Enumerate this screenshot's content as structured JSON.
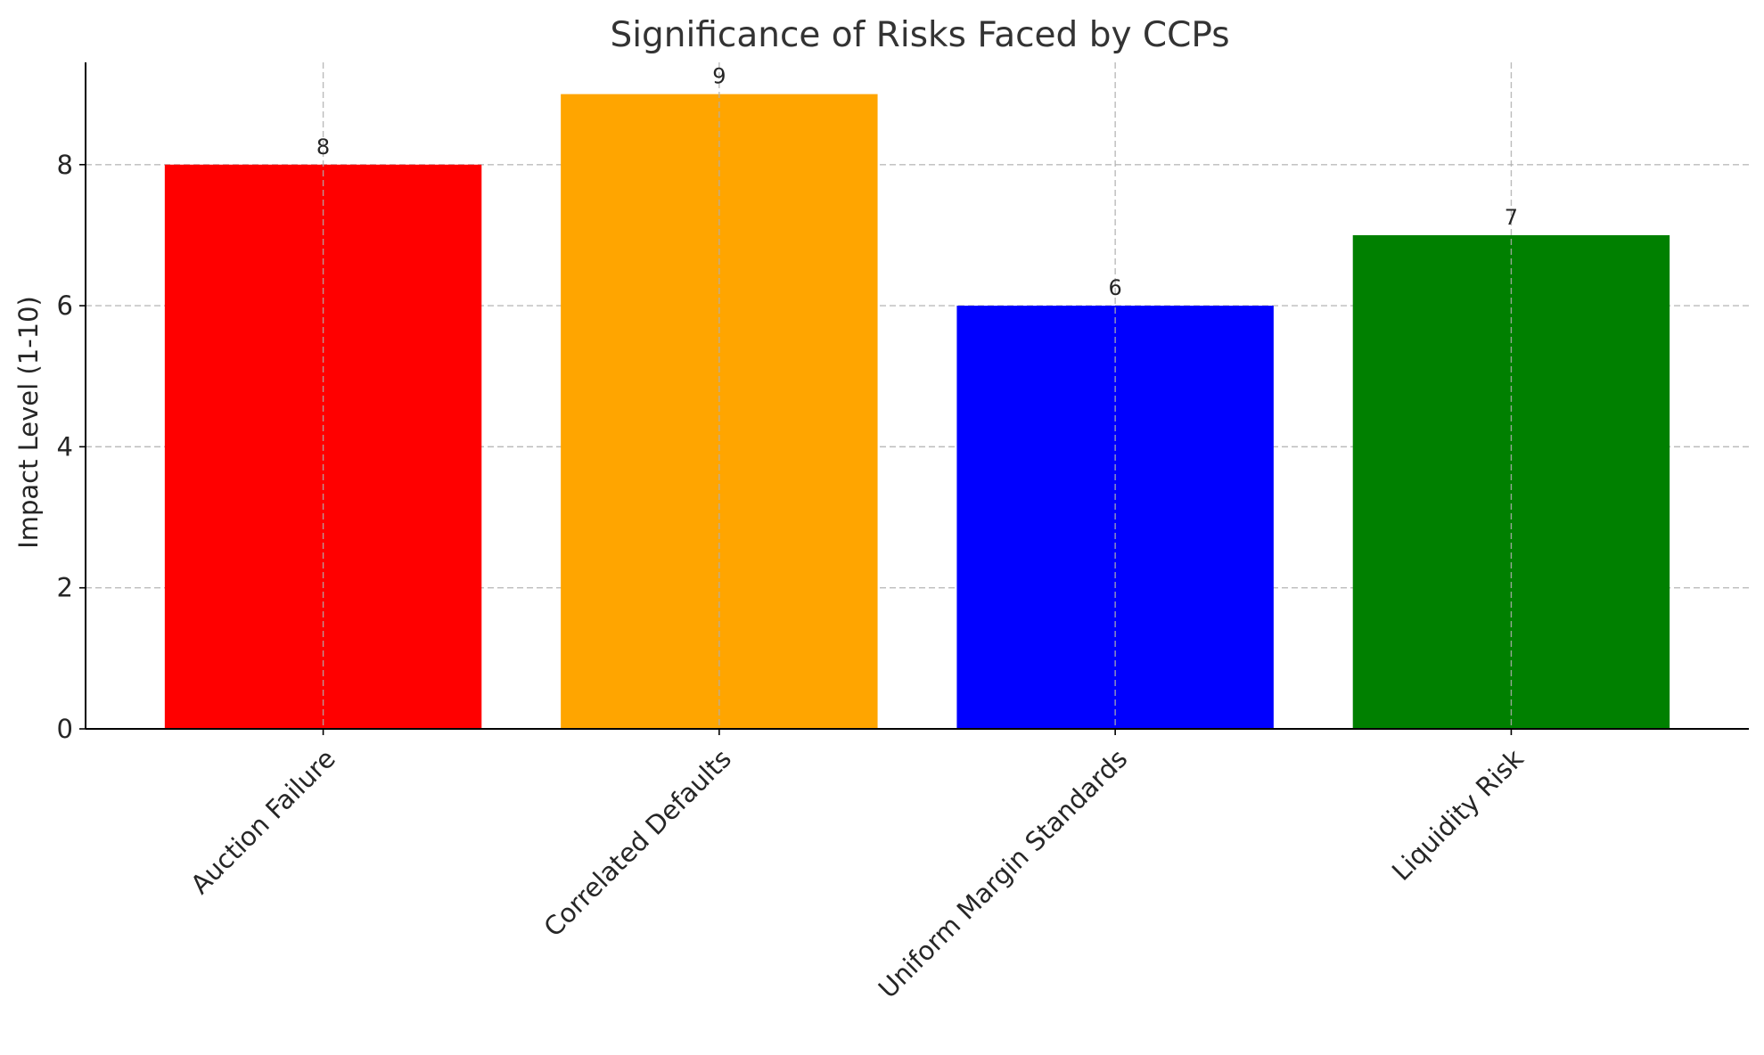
{
  "chart_data": {
    "type": "bar",
    "title": "Significance of Risks Faced by CCPs",
    "xlabel": "",
    "ylabel": "Impact Level (1-10)",
    "categories": [
      "Auction Failure",
      "Correlated Defaults",
      "Uniform Margin Standards",
      "Liquidity Risk"
    ],
    "values": [
      8,
      9,
      6,
      7
    ],
    "colors": [
      "#ff0000",
      "#ffa500",
      "#0000ff",
      "#008000"
    ],
    "data_labels": [
      "8",
      "9",
      "6",
      "7"
    ],
    "ylim": [
      0,
      9.45
    ],
    "yticks": [
      0,
      2,
      4,
      6,
      8
    ],
    "ytick_labels": [
      "0",
      "2",
      "4",
      "6",
      "8"
    ],
    "grid": true,
    "legend": "none"
  }
}
